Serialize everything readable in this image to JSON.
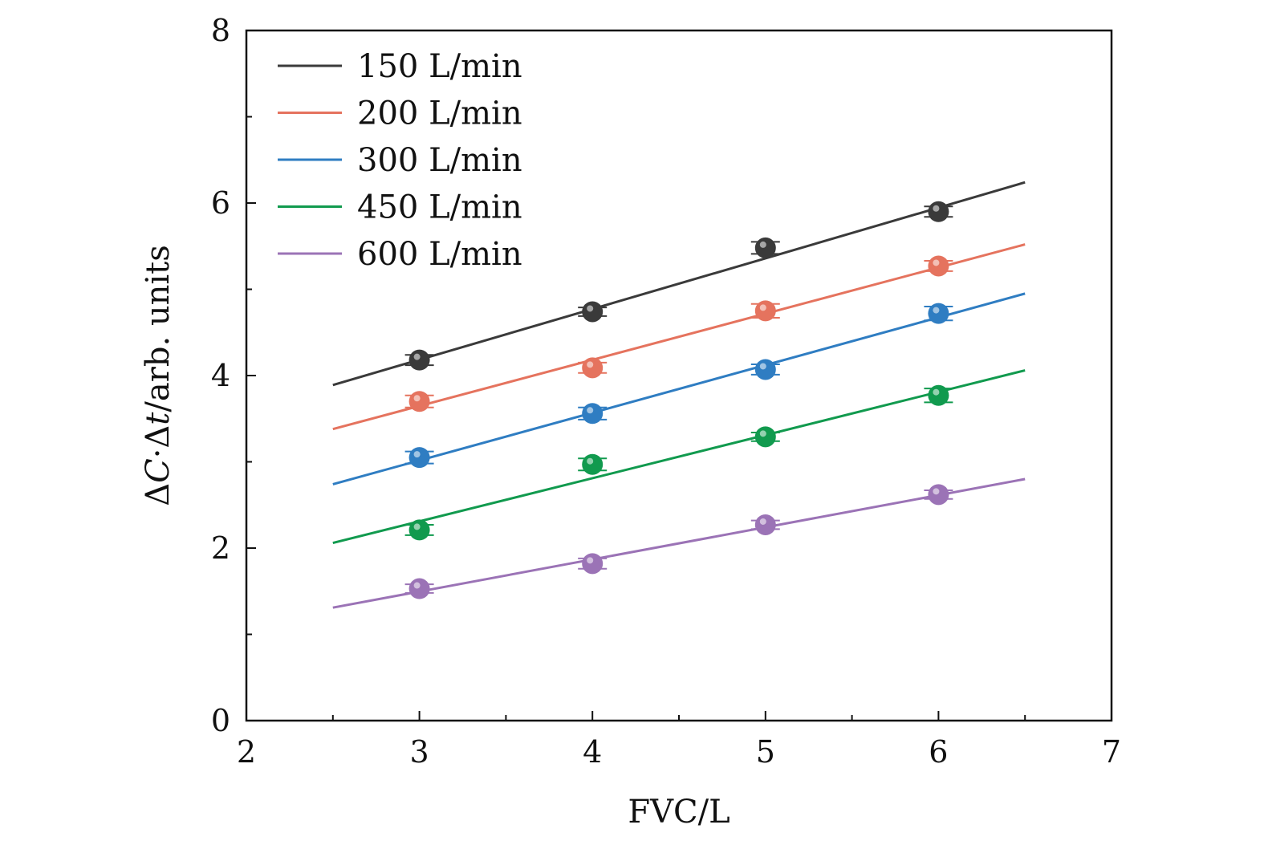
{
  "chart_data": {
    "type": "scatter",
    "title": "",
    "xlabel": "FVC/L",
    "ylabel_parts": [
      "Δ",
      "C",
      "·Δ",
      "t",
      "/arb. units"
    ],
    "ylabel": "ΔC·Δt/arb. units",
    "xlim": [
      2,
      7
    ],
    "ylim": [
      0,
      8
    ],
    "xticks": [
      "2",
      "3",
      "4",
      "5",
      "6",
      "7"
    ],
    "yticks": [
      "0",
      "2",
      "4",
      "6",
      "8"
    ],
    "legend_position": "top-left",
    "x": [
      3,
      4,
      5,
      6
    ],
    "fit_range": [
      2.5,
      6.5
    ],
    "series": [
      {
        "name": "150 L/min",
        "color": "#3a3a3a",
        "values": [
          4.18,
          4.74,
          5.48,
          5.9
        ],
        "errors": [
          0.06,
          0.05,
          0.07,
          0.06
        ],
        "fit": [
          3.89,
          6.24
        ]
      },
      {
        "name": "200 L/min",
        "color": "#e5735e",
        "values": [
          3.7,
          4.09,
          4.75,
          5.27
        ],
        "errors": [
          0.07,
          0.06,
          0.08,
          0.06
        ],
        "fit": [
          3.38,
          5.52
        ]
      },
      {
        "name": "300 L/min",
        "color": "#2f7dc2",
        "values": [
          3.05,
          3.56,
          4.07,
          4.72
        ],
        "errors": [
          0.07,
          0.07,
          0.06,
          0.08
        ],
        "fit": [
          2.74,
          4.95
        ]
      },
      {
        "name": "450 L/min",
        "color": "#119a4e",
        "values": [
          2.21,
          2.97,
          3.29,
          3.77
        ],
        "errors": [
          0.06,
          0.07,
          0.05,
          0.08
        ],
        "fit": [
          2.06,
          4.06
        ]
      },
      {
        "name": "600 L/min",
        "color": "#9b73b6",
        "values": [
          1.53,
          1.82,
          2.27,
          2.62
        ],
        "errors": [
          0.05,
          0.06,
          0.05,
          0.05
        ],
        "fit": [
          1.31,
          2.8
        ]
      }
    ]
  }
}
